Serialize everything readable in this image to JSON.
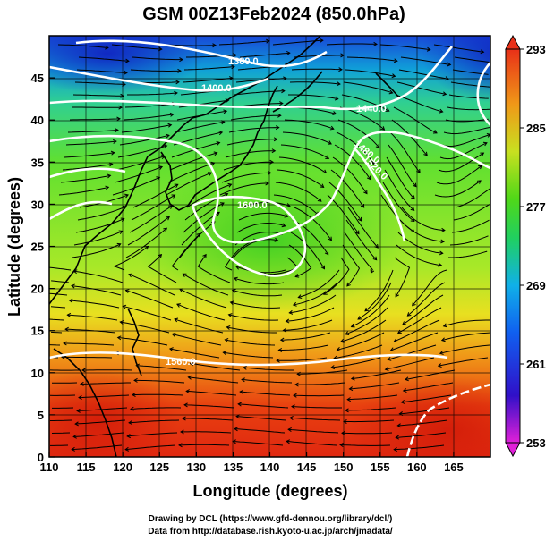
{
  "title": "GSM 00Z13Feb2024 (850.0hPa)",
  "xlabel": "Longitude (degrees)",
  "ylabel": "Latitude  (degrees)",
  "credit_line1": "Drawing by DCL (https://www.gfd-dennou.org/library/dcl/)",
  "credit_line2": "Data from http://database.rish.kyoto-u.ac.jp/arch/jmadata/",
  "xticks": [
    "110",
    "115",
    "120",
    "125",
    "130",
    "135",
    "140",
    "145",
    "150",
    "155",
    "160",
    "165"
  ],
  "yticks": [
    "0",
    "5",
    "10",
    "15",
    "20",
    "25",
    "30",
    "35",
    "40",
    "45"
  ],
  "colorbar": {
    "ticks": [
      "293",
      "285",
      "277",
      "269",
      "261",
      "253"
    ],
    "min": 253,
    "max": 293
  },
  "contour_labels": [
    "1380.0",
    "1400.0",
    "1440.0",
    "1480.0",
    "1520.0",
    "1600.0",
    "1560.0"
  ],
  "chart_data": {
    "type": "heatmap",
    "title": "GSM 00Z13Feb2024 (850.0hPa)",
    "xlabel": "Longitude (degrees)",
    "ylabel": "Latitude  (degrees)",
    "xlim": [
      110,
      170
    ],
    "ylim": [
      0,
      50
    ],
    "colorbar_range": [
      253,
      293
    ],
    "contour_levels": [
      1380,
      1400,
      1440,
      1480,
      1520,
      1560,
      1600
    ],
    "colors": {
      "warm": "#e03010",
      "cold": "#1020d0",
      "mid": "#40d010"
    }
  }
}
